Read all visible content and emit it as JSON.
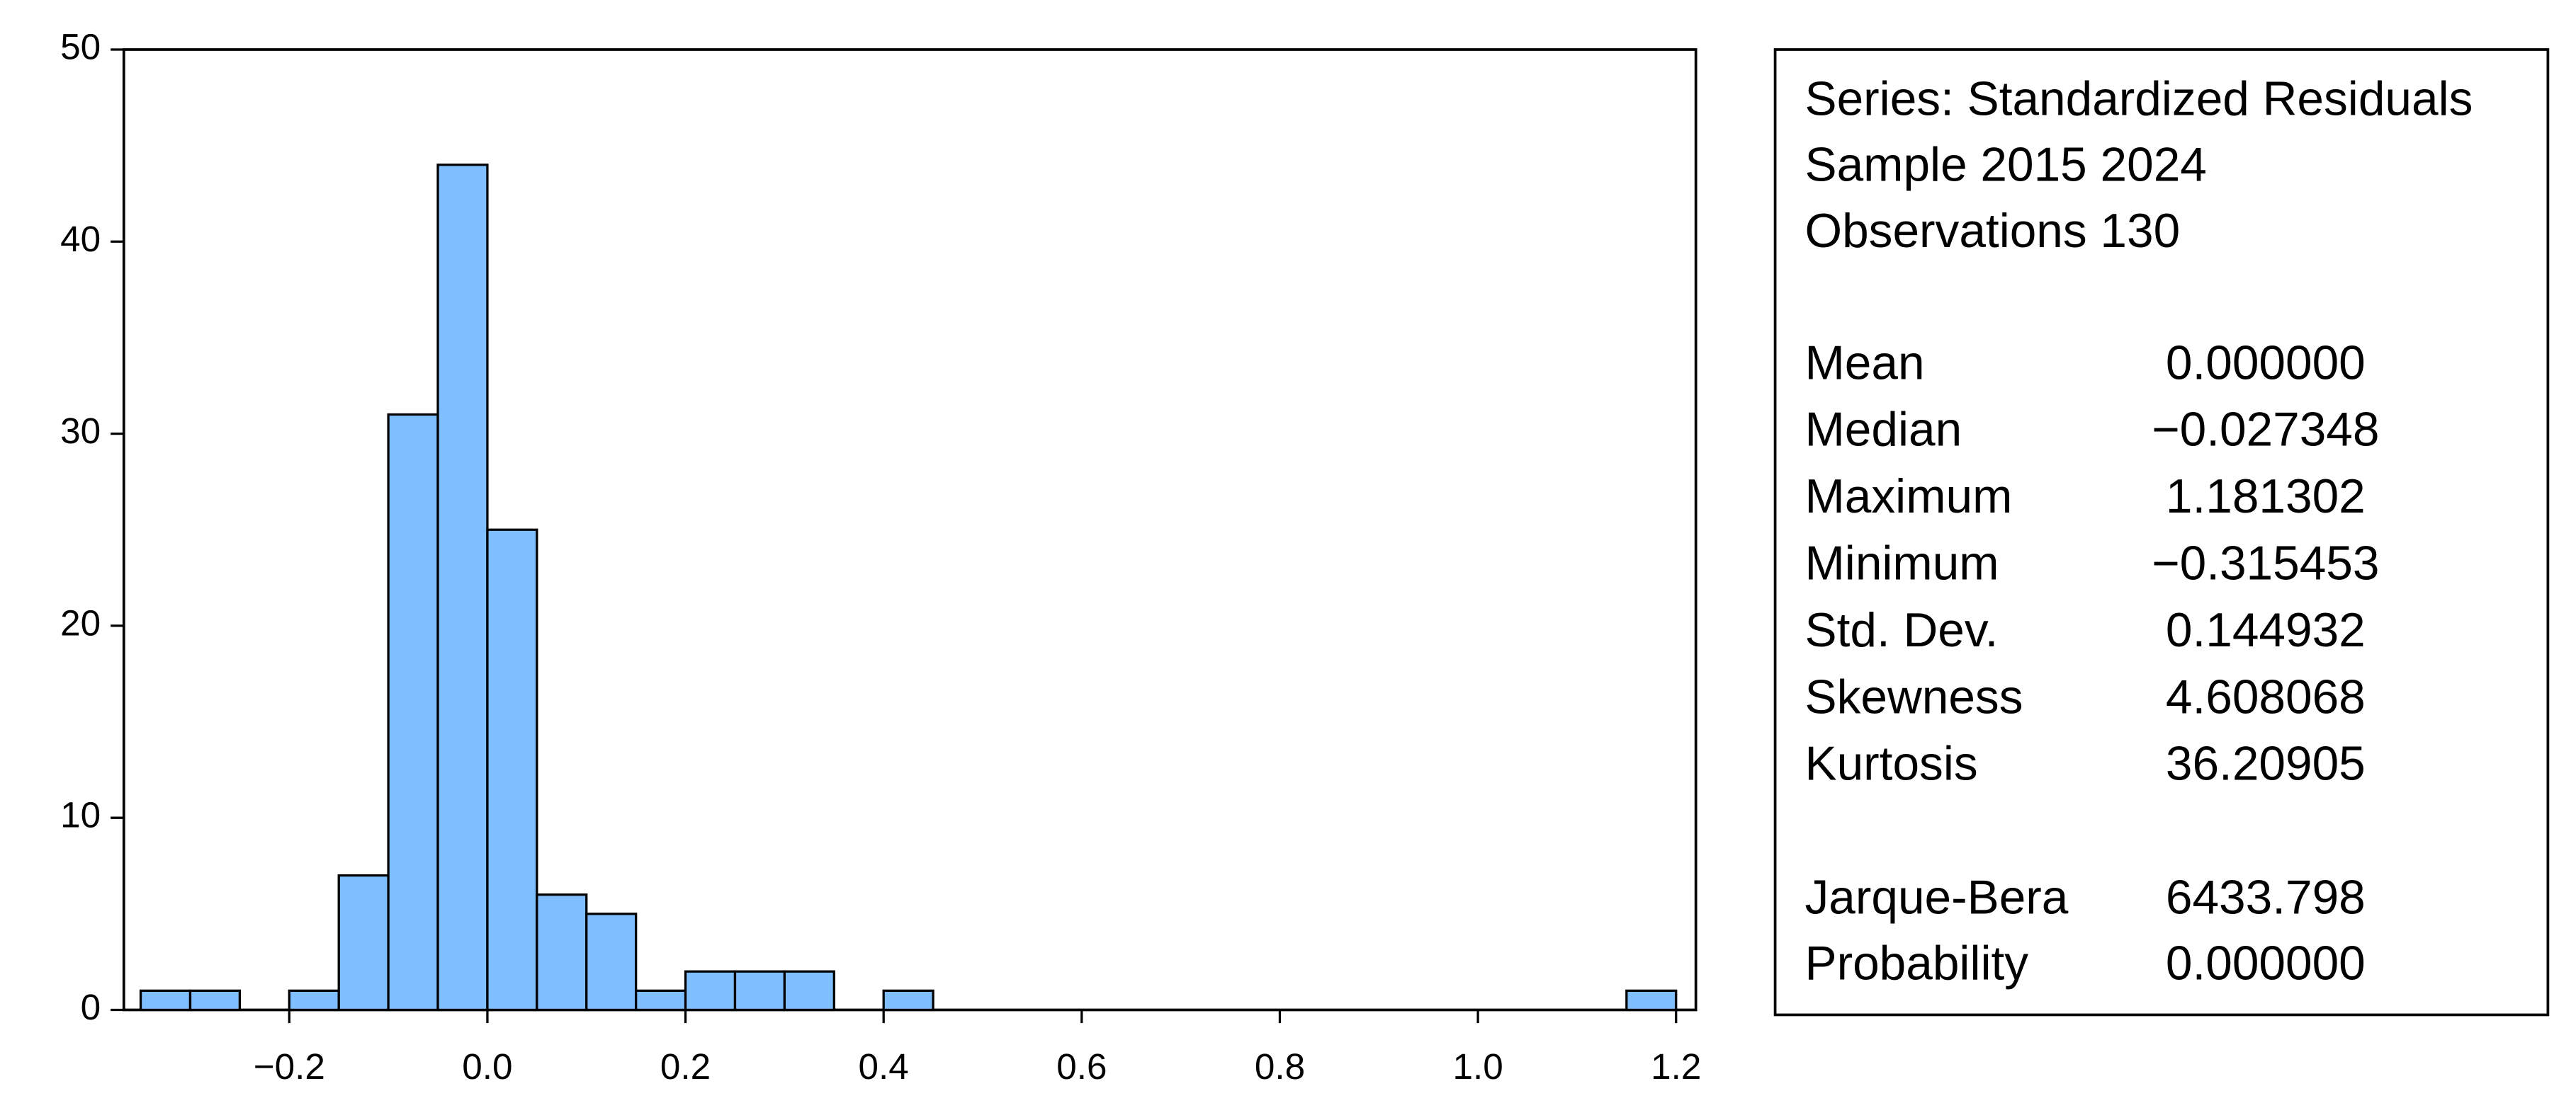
{
  "chart_data": {
    "type": "histogram",
    "color": "#80bfff",
    "bins": [
      -0.35,
      -0.3,
      -0.25,
      -0.2,
      -0.15,
      -0.1,
      -0.05,
      0,
      0.05,
      0.1,
      0.15,
      0.2,
      0.25,
      0.3,
      0.35,
      0.4,
      0.45,
      0.5,
      0.55,
      0.6,
      0.65,
      0.7,
      0.75,
      0.8,
      0.85,
      0.9,
      0.95,
      1.0,
      1.05,
      1.1,
      1.15,
      1.2
    ],
    "counts": [
      1,
      1,
      0,
      1,
      7,
      31,
      44,
      25,
      6,
      5,
      1,
      2,
      2,
      2,
      0,
      1,
      0,
      0,
      0,
      0,
      0,
      0,
      0,
      0,
      0,
      0,
      0,
      0,
      0,
      0,
      1
    ],
    "xlim": [
      -0.367,
      1.22
    ],
    "ylim": [
      0,
      50
    ],
    "xticks": [
      {
        "value": -0.2,
        "label": "−0.2"
      },
      {
        "value": 0,
        "label": "0.0"
      },
      {
        "value": 0.2,
        "label": "0.2"
      },
      {
        "value": 0.4,
        "label": "0.4"
      },
      {
        "value": 0.6,
        "label": "0.6"
      },
      {
        "value": 0.8,
        "label": "0.8"
      },
      {
        "value": 1.0,
        "label": "1.0"
      },
      {
        "value": 1.2,
        "label": "1.2"
      }
    ],
    "yticks": [
      0,
      10,
      20,
      30,
      40,
      50
    ],
    "stats_header": [
      "Series: Standardized Residuals",
      "Sample 2015 2024",
      "Observations 130"
    ],
    "stats": [
      {
        "label": "Mean",
        "value": "0.000000"
      },
      {
        "label": "Median",
        "value": "−0.027348"
      },
      {
        "label": "Maximum",
        "value": "1.181302"
      },
      {
        "label": "Minimum",
        "value": "−0.315453"
      },
      {
        "label": "Std. Dev.",
        "value": "0.144932"
      },
      {
        "label": "Skewness",
        "value": "4.608068"
      },
      {
        "label": "Kurtosis",
        "value": "36.20905"
      }
    ],
    "tests": [
      {
        "label": "Jarque-Bera",
        "value": "6433.798"
      },
      {
        "label": "Probability",
        "value": "0.000000"
      }
    ]
  }
}
